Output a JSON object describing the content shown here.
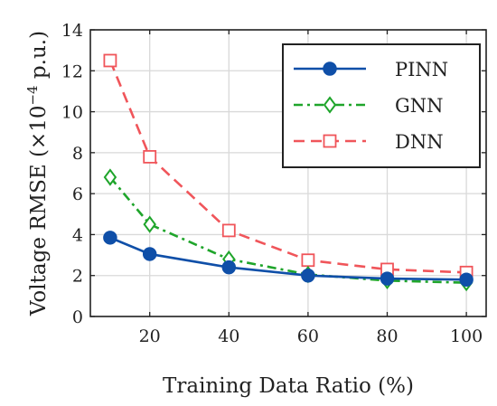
{
  "chart_data": {
    "type": "line",
    "x": [
      10,
      20,
      40,
      60,
      80,
      100
    ],
    "xlabel": "Training Data Ratio (%)",
    "ylabel_main": "Voltage RMSE (×10",
    "ylabel_exp": "−4",
    "ylabel_tail": " p.u.)",
    "xlim": [
      5,
      105
    ],
    "ylim": [
      0,
      14
    ],
    "xticks": [
      20,
      40,
      60,
      80,
      100
    ],
    "yticks": [
      0,
      2,
      4,
      6,
      8,
      10,
      12,
      14
    ],
    "grid": true,
    "legend_position": "top-right",
    "series": [
      {
        "name": "PINN",
        "values": [
          3.85,
          3.05,
          2.4,
          2.0,
          1.85,
          1.8
        ],
        "color": "#0f4fa8",
        "dash": "solid",
        "marker": "circle"
      },
      {
        "name": "GNN",
        "values": [
          6.8,
          4.5,
          2.8,
          2.05,
          1.75,
          1.65
        ],
        "color": "#1fa52b",
        "dash": "dashdot",
        "marker": "diamond"
      },
      {
        "name": "DNN",
        "values": [
          12.5,
          7.8,
          4.2,
          2.75,
          2.3,
          2.15
        ],
        "color": "#f0555a",
        "dash": "dashed",
        "marker": "square"
      }
    ]
  }
}
